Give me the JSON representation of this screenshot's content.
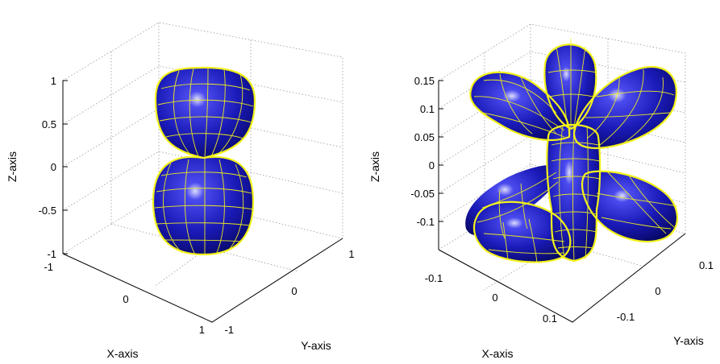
{
  "colors": {
    "surface": "#1a1ab8",
    "surface_dark": "#05055a",
    "mesh": "#f2f21a",
    "highlight": "#e8e8ff"
  },
  "chart_data": [
    {
      "type": "surface3d",
      "shape": "lobes-2",
      "xlabel": "X-axis",
      "ylabel": "Y-axis",
      "zlabel": "Z-axis",
      "xlim": [
        -1,
        1
      ],
      "ylim": [
        -1,
        1
      ],
      "zlim": [
        -1,
        1
      ],
      "xticks": [
        "-1",
        "0",
        "1"
      ],
      "yticks": [
        "-1",
        "0",
        "1"
      ],
      "zticks": [
        "1",
        "0.5",
        "0",
        "-0.5",
        "-1"
      ],
      "grid": true
    },
    {
      "type": "surface3d",
      "shape": "lobes-4",
      "xlabel": "X-axis",
      "ylabel": "Y-axis",
      "zlabel": "Z-axis",
      "xlim": [
        -0.15,
        0.15
      ],
      "ylim": [
        -0.15,
        0.15
      ],
      "zlim": [
        -0.15,
        0.15
      ],
      "xticks": [
        "-0.1",
        "0",
        "0.1"
      ],
      "yticks": [
        "-0.1",
        "0",
        "0.1"
      ],
      "zticks": [
        "0.15",
        "0.1",
        "0.05",
        "0",
        "-0.05",
        "-0.1"
      ],
      "grid": true
    }
  ]
}
